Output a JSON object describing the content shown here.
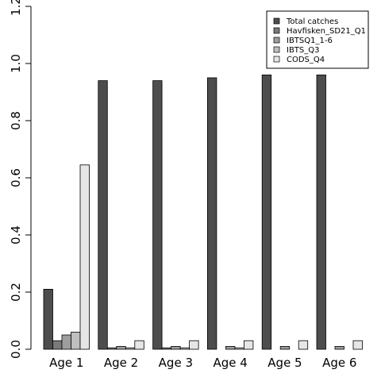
{
  "chart_data": {
    "type": "bar",
    "categories": [
      "Age 1",
      "Age 2",
      "Age 3",
      "Age 4",
      "Age 5",
      "Age 6"
    ],
    "series": [
      {
        "name": "Total catches",
        "color": "#4d4d4d",
        "values": [
          0.21,
          0.94,
          0.94,
          0.95,
          0.96,
          0.96
        ]
      },
      {
        "name": "Havfisken_SD21_Q1",
        "color": "#7a7a7a",
        "values": [
          0.03,
          0.005,
          0.005,
          0.0,
          0.0,
          0.0
        ]
      },
      {
        "name": "IBTSQ1_1-6",
        "color": "#9e9e9e",
        "values": [
          0.05,
          0.01,
          0.01,
          0.01,
          0.01,
          0.01
        ]
      },
      {
        "name": "IBTS_Q3",
        "color": "#bfbfbf",
        "values": [
          0.06,
          0.005,
          0.005,
          0.005,
          0.0,
          0.0
        ]
      },
      {
        "name": "CODS_Q4",
        "color": "#e6e6e6",
        "values": [
          0.645,
          0.03,
          0.03,
          0.03,
          0.03,
          0.03
        ]
      }
    ],
    "ylim": [
      0,
      1.2
    ],
    "yticks": [
      "0.0",
      "0.2",
      "0.4",
      "0.6",
      "0.8",
      "1.0",
      "1.2"
    ],
    "legend_position": "top-right",
    "grid": false
  }
}
